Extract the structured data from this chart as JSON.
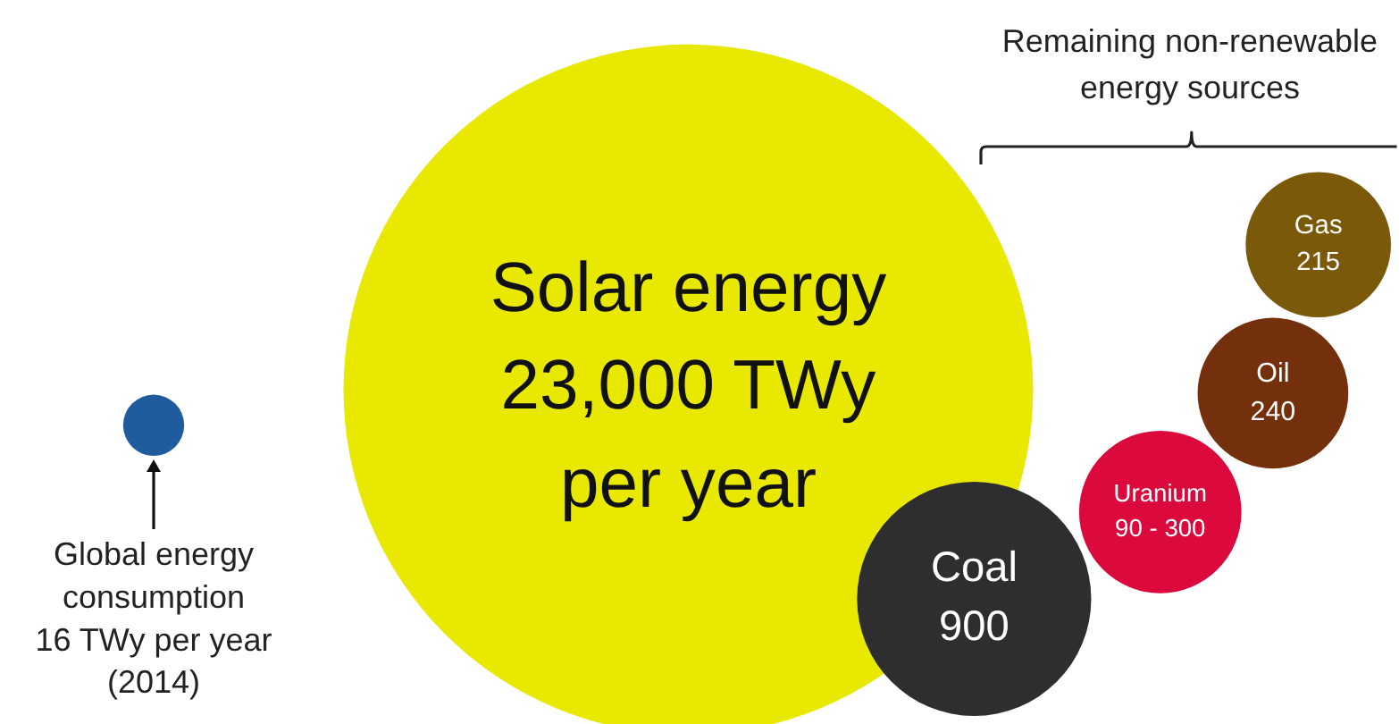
{
  "chart_data": {
    "type": "other",
    "categories": [
      "Global energy consumption",
      "Solar energy",
      "Coal",
      "Uranium",
      "Oil",
      "Gas"
    ],
    "values": [
      16,
      23000,
      900,
      null,
      240,
      215
    ],
    "value_labels": [
      "16 TWy per year (2014)",
      "23,000 TWy per year",
      "900",
      "90 - 300",
      "240",
      "215"
    ],
    "colors": [
      "#1f5c9e",
      "#e8e800",
      "#2e2e2e",
      "#dc0a3c",
      "#74300c",
      "#7a5a0a"
    ],
    "annotations": [
      "Remaining non-renewable energy sources"
    ]
  }
}
